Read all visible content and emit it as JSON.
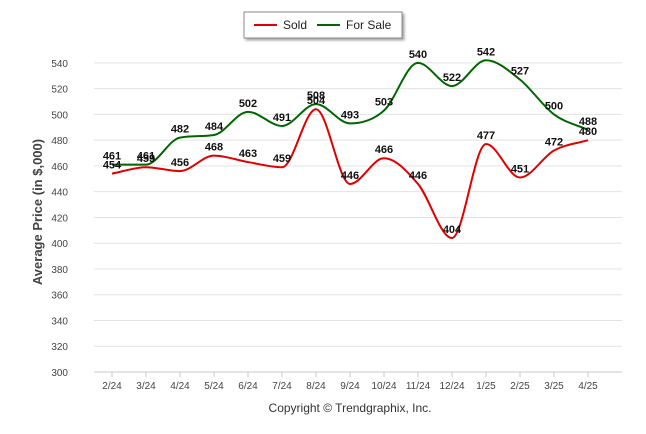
{
  "chart_data": {
    "type": "line",
    "categories": [
      "2/24",
      "3/24",
      "4/24",
      "5/24",
      "6/24",
      "7/24",
      "8/24",
      "9/24",
      "10/24",
      "11/24",
      "12/24",
      "1/25",
      "2/25",
      "3/25",
      "4/25"
    ],
    "series": [
      {
        "name": "Sold",
        "color": "#e00000",
        "values": [
          454,
          459,
          456,
          468,
          463,
          459,
          504,
          446,
          466,
          446,
          404,
          477,
          451,
          472,
          480
        ]
      },
      {
        "name": "For Sale",
        "color": "#006600",
        "values": [
          461,
          461,
          482,
          484,
          502,
          491,
          508,
          493,
          503,
          540,
          522,
          542,
          527,
          500,
          488
        ]
      }
    ],
    "ylabel": "Average Price (in $,000)",
    "xlabel": "",
    "ylim": [
      300,
      550
    ],
    "yticks": [
      300,
      320,
      340,
      360,
      380,
      400,
      420,
      440,
      460,
      480,
      500,
      520,
      540
    ],
    "grid": true,
    "legend": "top-center"
  },
  "footer": {
    "credit": "Copyright © Trendgraphix, Inc."
  }
}
